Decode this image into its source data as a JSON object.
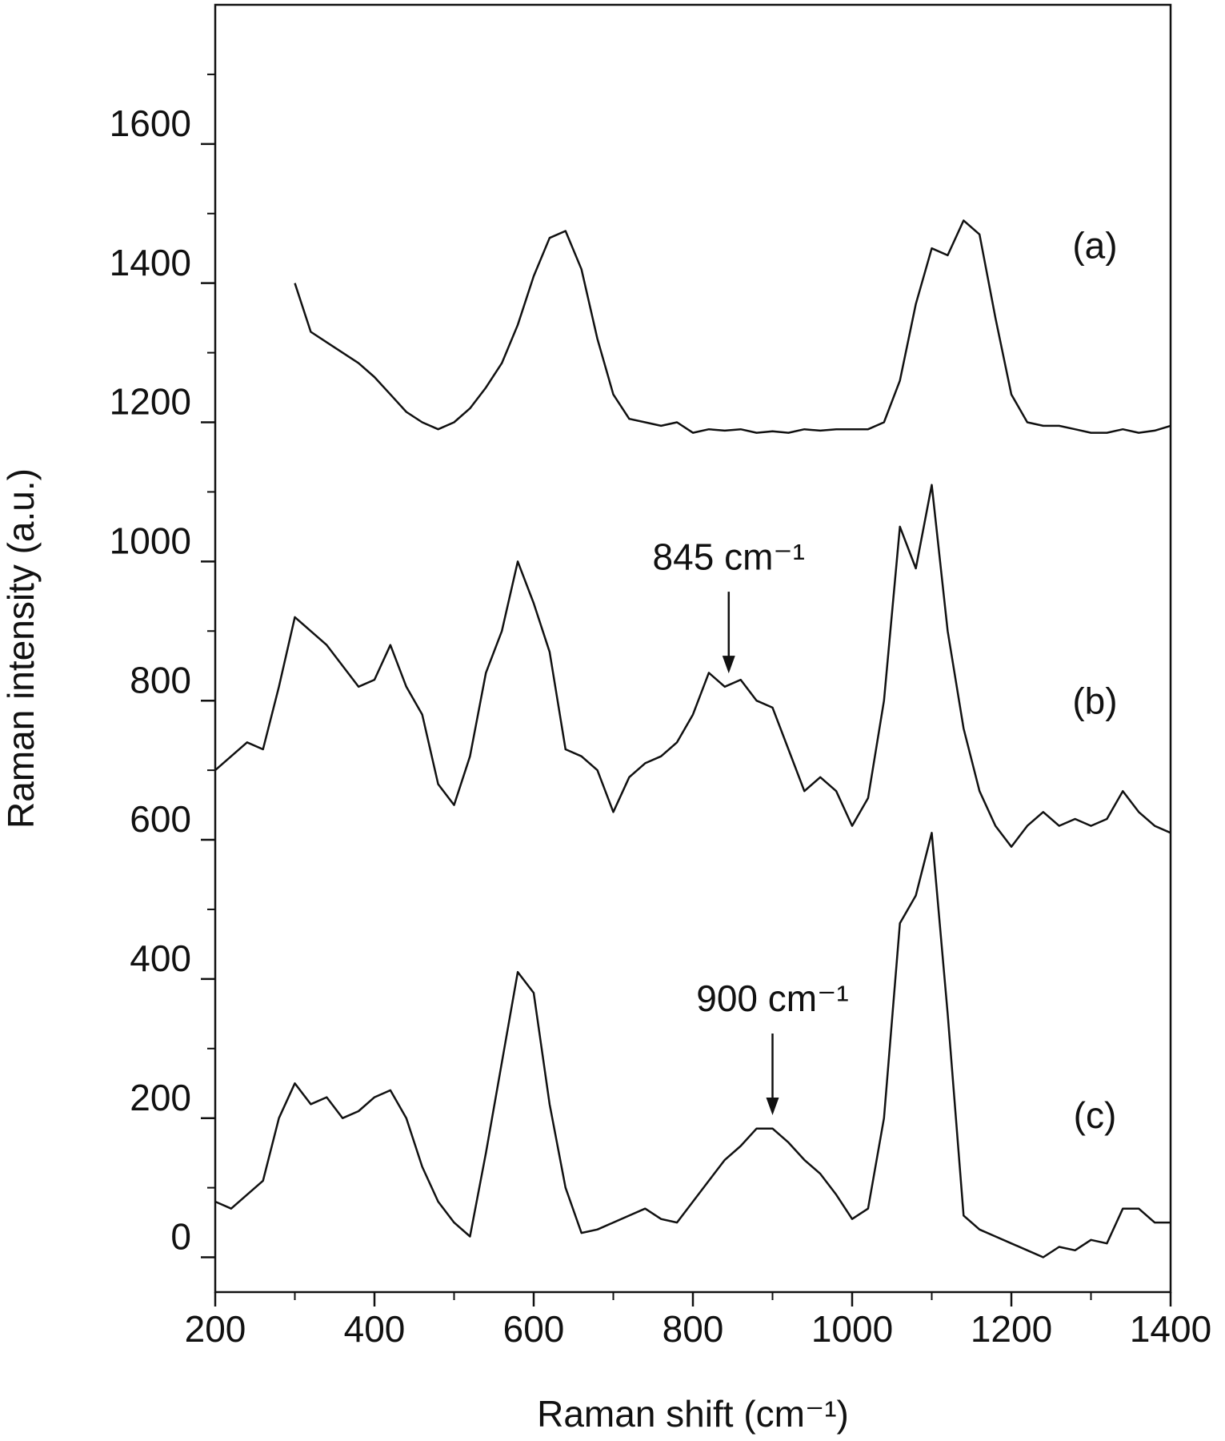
{
  "chart_data": {
    "type": "line",
    "xlabel": "Raman shift (cm⁻¹)",
    "ylabel": "Raman intensity (a.u.)",
    "xlim": [
      200,
      1400
    ],
    "ylim": [
      -50,
      1800
    ],
    "xticks": [
      200,
      400,
      600,
      800,
      1000,
      1200,
      1400
    ],
    "yticks": [
      0,
      200,
      400,
      600,
      800,
      1000,
      1200,
      1400,
      1600
    ],
    "xminorticks": [
      300,
      500,
      700,
      900,
      1100,
      1300
    ],
    "yminorticks": [
      100,
      300,
      500,
      700,
      900,
      1100,
      1300,
      1500,
      1700
    ],
    "x": [
      200,
      220,
      240,
      260,
      280,
      300,
      320,
      340,
      360,
      380,
      400,
      420,
      440,
      460,
      480,
      500,
      520,
      540,
      560,
      580,
      600,
      620,
      640,
      660,
      680,
      700,
      720,
      740,
      760,
      780,
      800,
      820,
      840,
      860,
      880,
      900,
      920,
      940,
      960,
      980,
      1000,
      1020,
      1040,
      1060,
      1080,
      1100,
      1120,
      1140,
      1160,
      1180,
      1200,
      1220,
      1240,
      1260,
      1280,
      1300,
      1320,
      1340,
      1360,
      1380,
      1400
    ],
    "series": [
      {
        "color": "#111111",
        "values": [
          null,
          null,
          null,
          null,
          null,
          1400,
          1330,
          1315,
          1300,
          1285,
          1265,
          1240,
          1215,
          1200,
          1190,
          1200,
          1220,
          1250,
          1285,
          1340,
          1410,
          1465,
          1475,
          1420,
          1320,
          1240,
          1205,
          1200,
          1195,
          1200,
          1185,
          1190,
          1188,
          1190,
          1185,
          1187,
          1185,
          1190,
          1188,
          1190,
          1190,
          1190,
          1200,
          1260,
          1370,
          1450,
          1440,
          1490,
          1470,
          1350,
          1240,
          1200,
          1195,
          1195,
          1190,
          1185,
          1185,
          1190,
          1185,
          1188,
          1195
        ]
      },
      {
        "color": "#111111",
        "values": [
          700,
          720,
          740,
          730,
          820,
          920,
          900,
          880,
          850,
          820,
          830,
          880,
          820,
          780,
          680,
          650,
          720,
          840,
          900,
          1000,
          940,
          870,
          730,
          720,
          700,
          640,
          690,
          710,
          720,
          740,
          780,
          840,
          820,
          830,
          800,
          790,
          730,
          670,
          690,
          670,
          620,
          660,
          800,
          1050,
          990,
          1110,
          900,
          760,
          670,
          620,
          590,
          620,
          640,
          620,
          630,
          620,
          630,
          670,
          640,
          620,
          610
        ]
      },
      {
        "color": "#111111",
        "values": [
          80,
          70,
          90,
          110,
          200,
          250,
          220,
          230,
          200,
          210,
          230,
          240,
          200,
          130,
          80,
          50,
          30,
          150,
          280,
          410,
          380,
          220,
          100,
          35,
          40,
          50,
          60,
          70,
          55,
          50,
          80,
          110,
          140,
          160,
          185,
          185,
          165,
          140,
          120,
          90,
          55,
          70,
          200,
          480,
          520,
          610,
          350,
          60,
          40,
          30,
          20,
          10,
          0,
          15,
          10,
          25,
          20,
          70,
          70,
          50,
          50
        ]
      }
    ],
    "annotations": [
      {
        "text": "(a)",
        "x": 1305,
        "y": 1450
      },
      {
        "text": "(b)",
        "x": 1305,
        "y": 795
      },
      {
        "text": "(c)",
        "x": 1305,
        "y": 200
      },
      {
        "text": "845 cm⁻¹",
        "x": 845,
        "y": 830,
        "arrow": true
      },
      {
        "text": "900 cm⁻¹",
        "x": 900,
        "y": 195,
        "arrow": true
      }
    ]
  }
}
